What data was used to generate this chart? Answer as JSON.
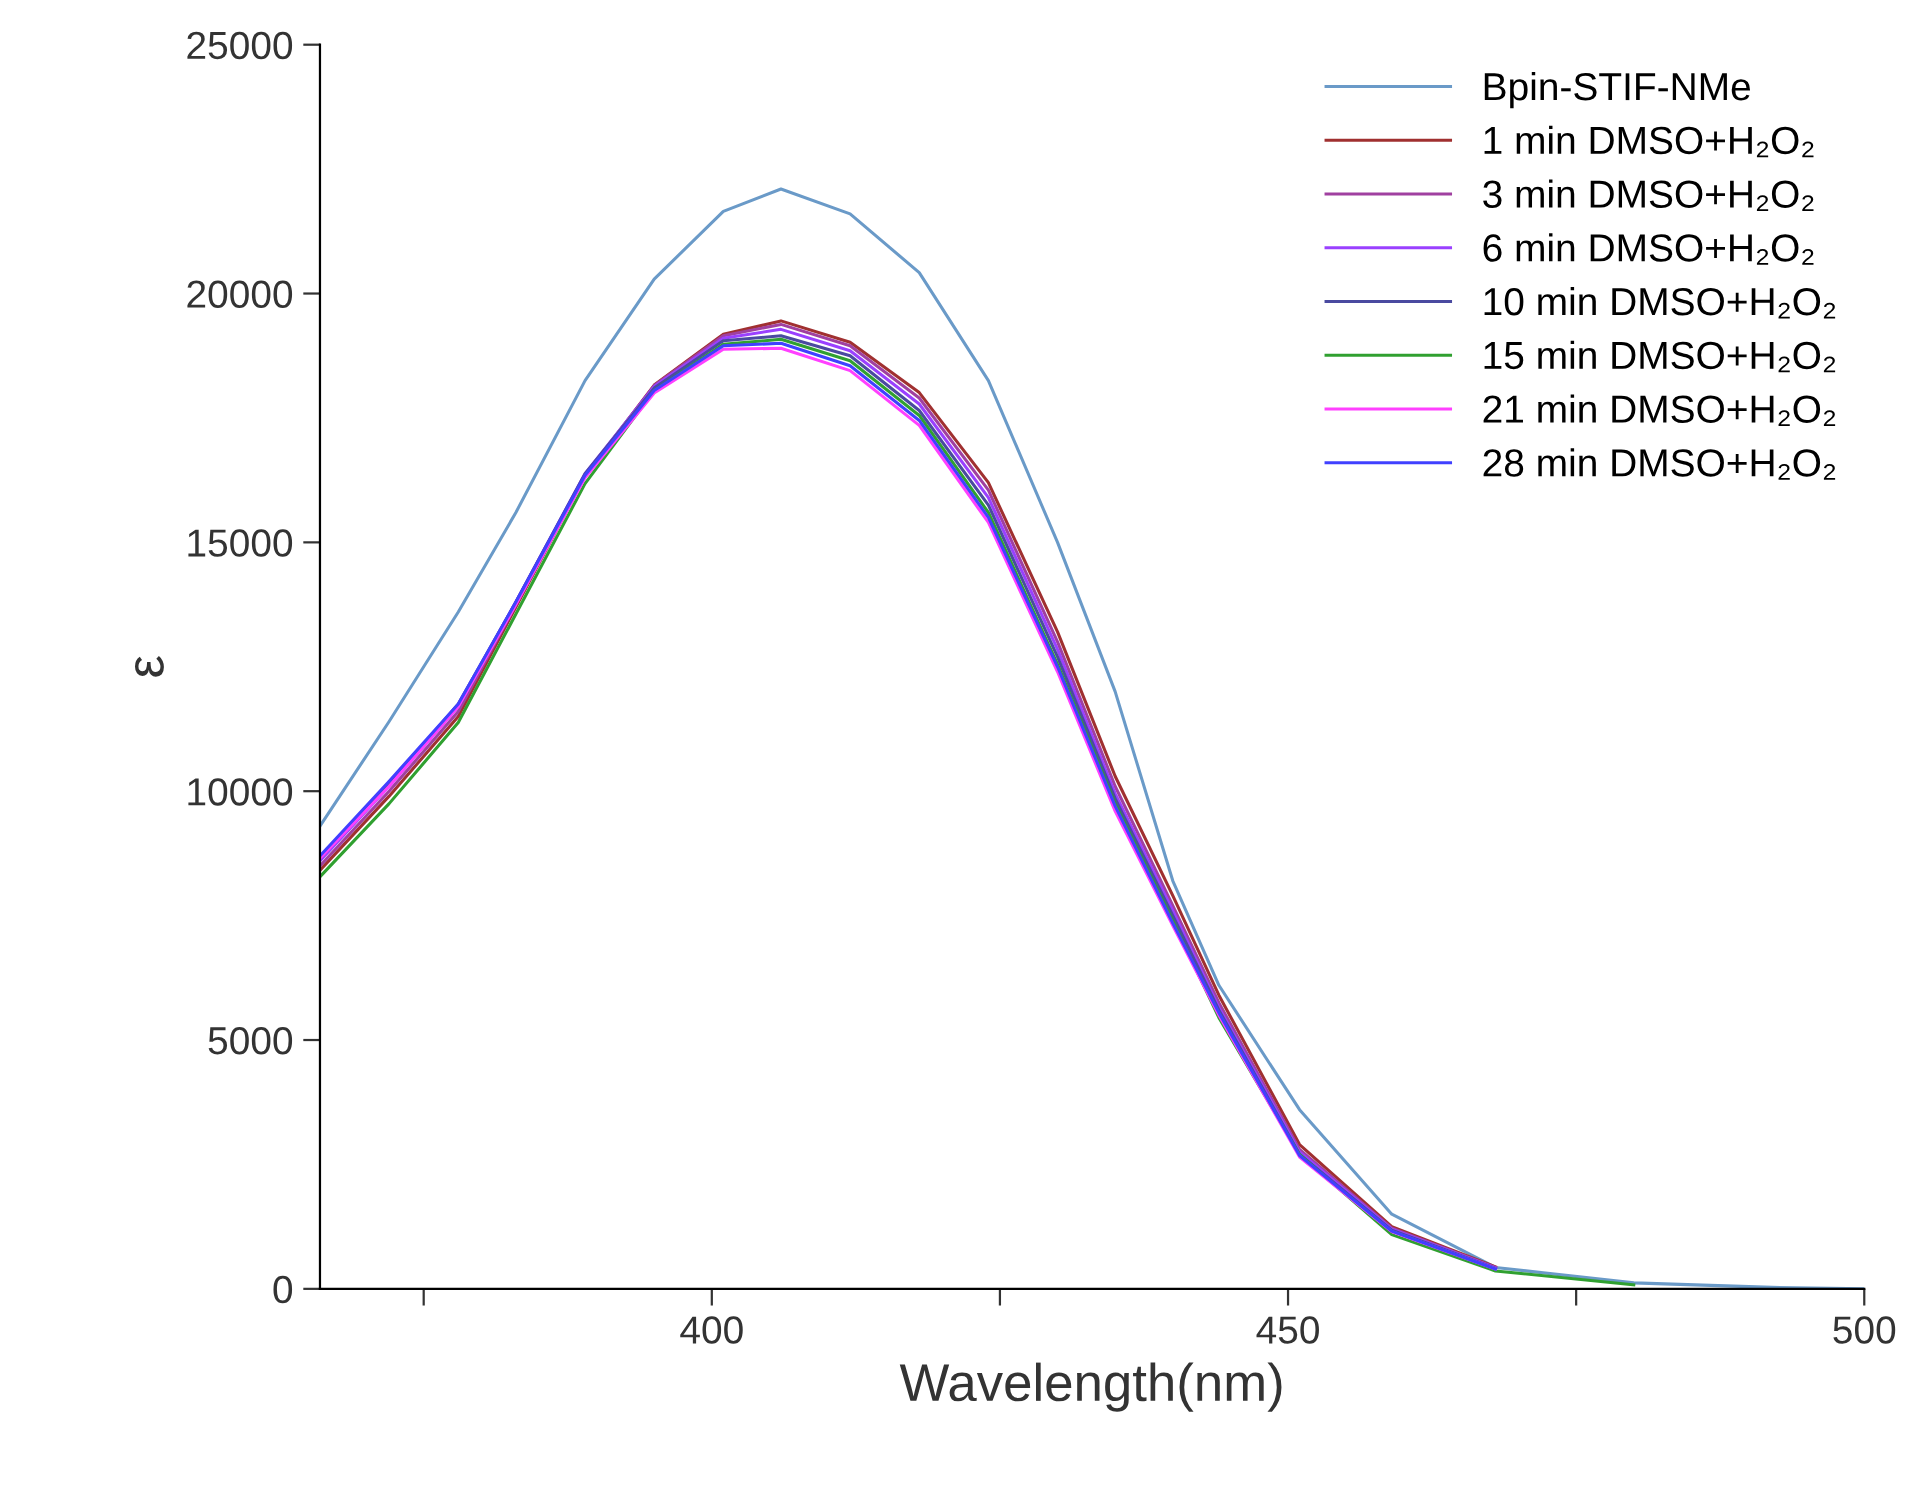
{
  "chart_data": {
    "type": "line",
    "xlabel": "Wavelength(nm)",
    "ylabel": "ε",
    "x": [
      366,
      372,
      378,
      383,
      389,
      395,
      401,
      406,
      412,
      418,
      424,
      430,
      435,
      440,
      444,
      451,
      459,
      468,
      480,
      492,
      500
    ],
    "series": [
      {
        "name": "Bpin-STIF-NMe",
        "color": "#6a9ac8",
        "values": [
          9300,
          11400,
          13600,
          15600,
          18250,
          20290,
          21650,
          22100,
          21600,
          20420,
          18250,
          15000,
          12000,
          8200,
          6100,
          3600,
          1500,
          430,
          120,
          30,
          0
        ]
      },
      {
        "name": "1 min DMSO+H₂O₂",
        "color": "#a03030",
        "values": [
          8410,
          9900,
          11500,
          13700,
          16330,
          18160,
          19180,
          19450,
          19020,
          18010,
          16200,
          13200,
          10300,
          7900,
          5900,
          2900,
          1250,
          440,
          null,
          null,
          null
        ]
      },
      {
        "name": "3 min DMSO+H₂O₂",
        "color": "#a040a0",
        "values": [
          8500,
          10000,
          11600,
          13750,
          16350,
          18150,
          19150,
          19380,
          18950,
          17900,
          16050,
          13000,
          10100,
          7700,
          5750,
          2800,
          1220,
          430,
          null,
          null,
          null
        ]
      },
      {
        "name": "6 min DMSO+H₂O₂",
        "color": "#9a40ff",
        "values": [
          8600,
          10100,
          11700,
          13800,
          16380,
          18130,
          19100,
          19280,
          18850,
          17780,
          15900,
          12850,
          9950,
          7600,
          5650,
          2750,
          1200,
          420,
          null,
          null,
          null
        ]
      },
      {
        "name": "10 min DMSO+H₂O₂",
        "color": "#4a4aa0",
        "values": [
          8650,
          10150,
          11750,
          13800,
          16380,
          18100,
          19050,
          19150,
          18750,
          17650,
          15750,
          12700,
          9850,
          7500,
          5600,
          2700,
          1180,
          410,
          null,
          null,
          null
        ]
      },
      {
        "name": "15 min DMSO+H₂O₂",
        "color": "#30a030",
        "values": [
          8280,
          9750,
          11380,
          13560,
          16180,
          18050,
          18980,
          19080,
          18650,
          17550,
          15600,
          12550,
          9750,
          7400,
          5450,
          2700,
          1090,
          360,
          80,
          null,
          null
        ]
      },
      {
        "name": "21 min DMSO+H₂O₂",
        "color": "#ff40ff",
        "values": [
          8650,
          10100,
          11700,
          13750,
          16300,
          18000,
          18880,
          18900,
          18450,
          17350,
          15400,
          12400,
          9600,
          7300,
          5500,
          2650,
          1150,
          400,
          null,
          null,
          null
        ]
      },
      {
        "name": "28 min DMSO+H₂O₂",
        "color": "#4040ff",
        "values": [
          8700,
          10200,
          11750,
          13800,
          16350,
          18050,
          18950,
          19000,
          18550,
          17450,
          15500,
          12500,
          9700,
          7350,
          5550,
          2680,
          1160,
          400,
          null,
          null,
          null
        ]
      }
    ],
    "xlim": [
      366,
      500
    ],
    "ylim": [
      0,
      25000
    ],
    "xticks": [
      {
        "value": 375,
        "label": null
      },
      400,
      {
        "value": 425,
        "label": null
      },
      450,
      {
        "value": 475,
        "label": null
      },
      500
    ],
    "yticks": [
      0,
      5000,
      10000,
      15000,
      20000,
      25000
    ],
    "grid": false,
    "legend": "top right"
  }
}
